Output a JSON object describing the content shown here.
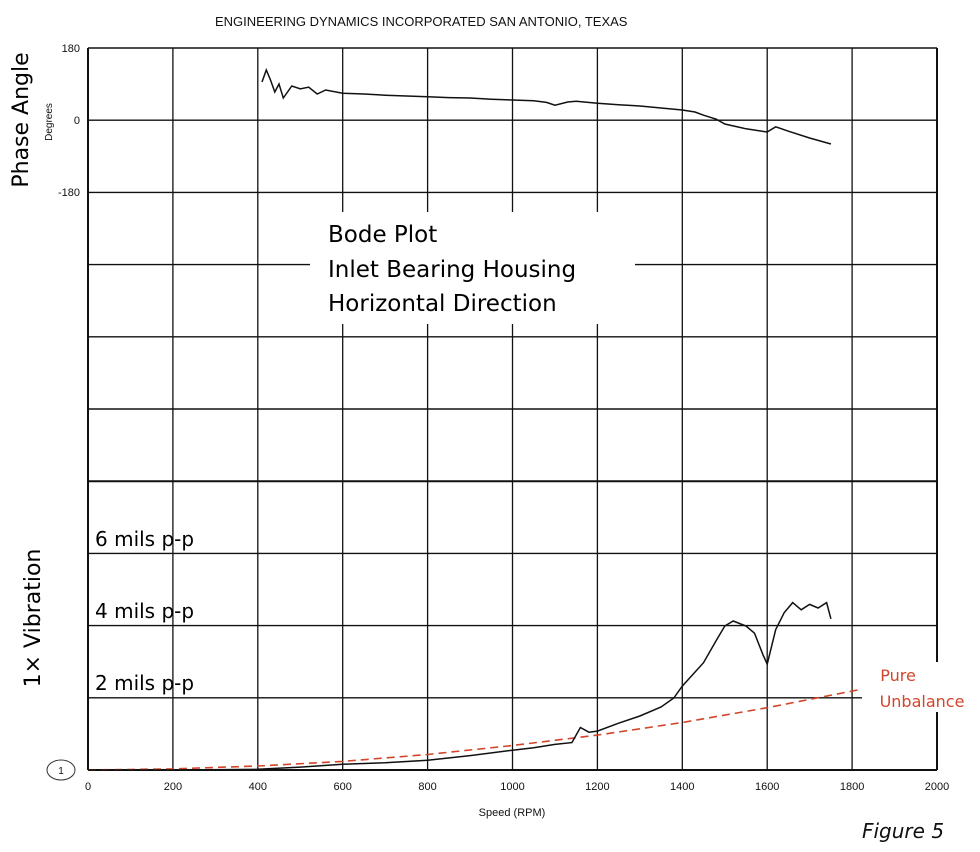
{
  "header": "ENGINEERING DYNAMICS INCORPORATED     SAN ANTONIO, TEXAS",
  "figure_label": "Figure 5",
  "circle_marker": "1",
  "chart_data": [
    {
      "type": "line",
      "ylabel": "Phase Angle",
      "ylabel_units": "Degrees",
      "ylim": [
        -180,
        180
      ],
      "yticks": [
        "180",
        "0",
        "-180"
      ],
      "xlim": [
        0,
        2000
      ],
      "grid": true,
      "series": [
        {
          "color": "#111111",
          "x": [
            410,
            420,
            430,
            440,
            450,
            460,
            480,
            500,
            520,
            540,
            560,
            600,
            650,
            700,
            750,
            800,
            850,
            900,
            950,
            1000,
            1050,
            1080,
            1100,
            1130,
            1150,
            1200,
            1250,
            1300,
            1350,
            1400,
            1430,
            1450,
            1480,
            1500,
            1550,
            1600,
            1620,
            1650,
            1700,
            1750
          ],
          "y": [
            95,
            125,
            100,
            70,
            90,
            55,
            85,
            78,
            82,
            65,
            75,
            67,
            65,
            62,
            60,
            58,
            56,
            55,
            52,
            50,
            48,
            44,
            37,
            45,
            47,
            42,
            38,
            35,
            30,
            25,
            20,
            12,
            2,
            -10,
            -22,
            -30,
            -17,
            -28,
            -45,
            -60
          ]
        }
      ]
    },
    {
      "type": "line",
      "ylabel": "1× Vibration",
      "ylim": [
        0,
        6
      ],
      "yticks": [
        "2 mils p-p",
        "4 mils p-p",
        "6 mils p-p"
      ],
      "xlabel": "Speed (RPM)",
      "xlim": [
        0,
        2000
      ],
      "xticks": [
        "0",
        "200",
        "400",
        "600",
        "800",
        "1000",
        "1200",
        "1400",
        "1600",
        "1800",
        "2000"
      ],
      "grid": true,
      "series": [
        {
          "color": "#111111",
          "x": [
            0,
            200,
            400,
            500,
            600,
            700,
            800,
            900,
            1000,
            1050,
            1100,
            1140,
            1160,
            1180,
            1200,
            1250,
            1300,
            1350,
            1380,
            1400,
            1450,
            1480,
            1500,
            1520,
            1550,
            1570,
            1590,
            1600,
            1620,
            1640,
            1660,
            1680,
            1700,
            1720,
            1740,
            1750
          ],
          "y": [
            0,
            0,
            0.02,
            0.08,
            0.16,
            0.2,
            0.27,
            0.4,
            0.55,
            0.62,
            0.71,
            0.76,
            1.18,
            1.05,
            1.08,
            1.3,
            1.5,
            1.75,
            2.0,
            2.33,
            2.98,
            3.6,
            4.0,
            4.14,
            4.0,
            3.8,
            3.2,
            2.94,
            3.9,
            4.37,
            4.65,
            4.45,
            4.6,
            4.5,
            4.65,
            4.2
          ]
        },
        {
          "name": "Pure Unbalance",
          "style": "dashed",
          "color": "#d2452b",
          "x": [
            0,
            200,
            400,
            600,
            800,
            1000,
            1200,
            1400,
            1600,
            1820
          ],
          "y": [
            0,
            0.03,
            0.11,
            0.24,
            0.43,
            0.68,
            0.97,
            1.32,
            1.73,
            2.24
          ]
        }
      ]
    }
  ],
  "annotation": {
    "lines": [
      "Bode Plot",
      "Inlet Bearing Housing",
      "Horizontal Direction"
    ]
  }
}
